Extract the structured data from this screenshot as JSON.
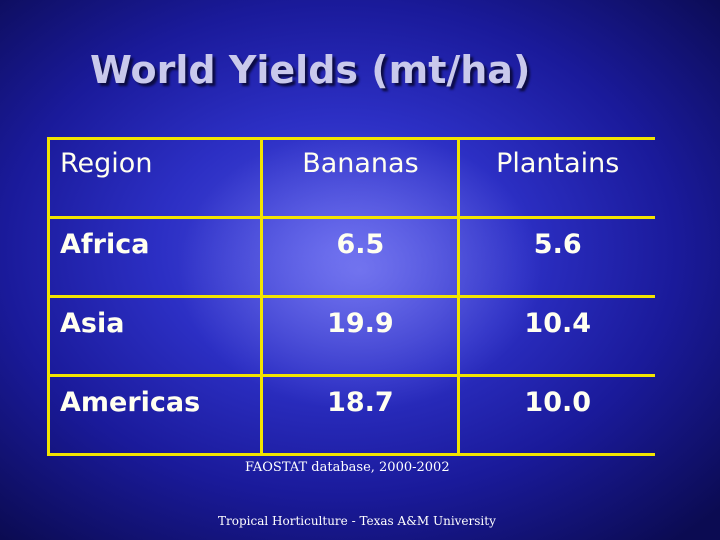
{
  "slide": {
    "title": "World Yields (mt/ha)",
    "source": "FAOSTAT database, 2000-2002",
    "footer": "Tropical Horticulture - Texas A&M University"
  },
  "table": {
    "headers": [
      "Region",
      "Bananas",
      "Plantains"
    ],
    "rows": [
      [
        "Africa",
        "6.5",
        "5.6"
      ],
      [
        "Asia",
        "19.9",
        "10.4"
      ],
      [
        "Americas",
        "18.7",
        "10.0"
      ]
    ]
  },
  "colors": {
    "background": "#2c2fc4",
    "table_border": "#f2e400",
    "title_text": "#c9c9ec",
    "body_text": "#fffff0"
  }
}
